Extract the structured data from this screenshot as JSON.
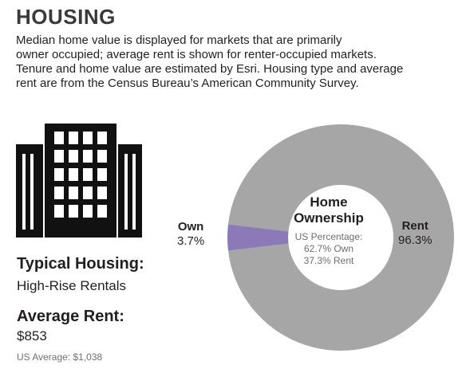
{
  "header": {
    "title": "HOUSING",
    "description_lines": [
      "Median home value is displayed for markets that are primarily",
      "owner occupied; average rent is shown for renter-occupied markets.",
      "Tenure and home value are estimated by Esri. Housing type and average",
      "rent are from the Census Bureau’s American Community Survey."
    ]
  },
  "typical_housing": {
    "label": "Typical Housing:",
    "value": "High-Rise Rentals",
    "icon": "high-rise-building-icon"
  },
  "average_rent": {
    "label": "Average Rent:",
    "value": "$853",
    "us_average": "US Average: $1,038"
  },
  "ownership_chart": {
    "title_line1": "Home",
    "title_line2": "Ownership",
    "us_label": "US Percentage:",
    "us_own": "62.7% Own",
    "us_rent": "37.3% Rent",
    "own_label": "Own",
    "own_value": "3.7%",
    "rent_label": "Rent",
    "rent_value": "96.3%",
    "colors": {
      "own": "#8c7ab8",
      "rent": "#a6a6a6"
    }
  },
  "chart_data": {
    "type": "pie",
    "categories": [
      "Own",
      "Rent"
    ],
    "values": [
      3.7,
      96.3
    ],
    "title": "Home Ownership",
    "annotations": [
      "US Percentage:",
      "62.7% Own",
      "37.3% Rent"
    ]
  }
}
